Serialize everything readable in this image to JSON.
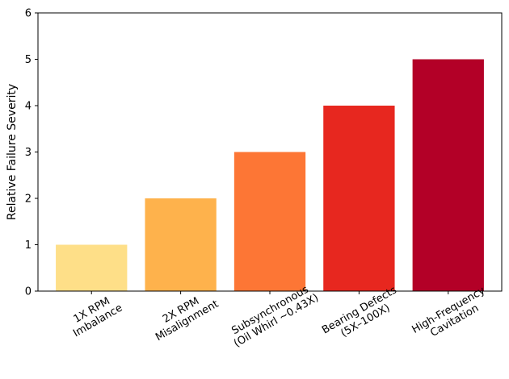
{
  "chart_data": {
    "type": "bar",
    "title": "",
    "xlabel": "",
    "ylabel": "Relative Failure Severity",
    "ylim": [
      0,
      6
    ],
    "yticks": [
      0,
      1,
      2,
      3,
      4,
      5,
      6
    ],
    "grid": false,
    "categories": [
      [
        "1X RPM",
        "Imbalance"
      ],
      [
        "2X RPM",
        "Misalignment"
      ],
      [
        "Subsynchronous",
        "(Oil Whirl ~0.43X)"
      ],
      [
        "Bearing Defects",
        "(5X–100X)"
      ],
      [
        "High-Frequency",
        "Cavitation"
      ]
    ],
    "values": [
      1,
      2,
      3,
      4,
      5
    ],
    "colors": [
      "#fedf88",
      "#feb24c",
      "#fd7635",
      "#e7271f",
      "#b30027"
    ]
  }
}
